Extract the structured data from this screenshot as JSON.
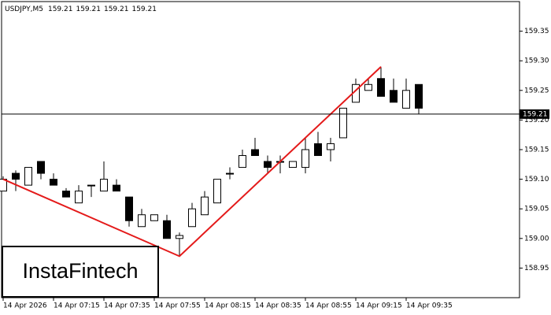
{
  "chart_data": {
    "type": "candlestick",
    "symbol": "USDJPY,M5",
    "quote": [
      159.21,
      159.21,
      159.21,
      159.21
    ],
    "logo": "InstaFintech",
    "categories": [
      "14 Apr 2026",
      null,
      null,
      null,
      "14 Apr 07:15",
      null,
      null,
      null,
      "14 Apr 07:35",
      null,
      null,
      null,
      "14 Apr 07:55",
      null,
      null,
      null,
      "14 Apr 08:15",
      null,
      null,
      null,
      "14 Apr 08:35",
      null,
      null,
      null,
      "14 Apr 08:55",
      null,
      null,
      null,
      "14 Apr 09:15",
      null,
      null,
      null,
      "14 Apr 09:35",
      null
    ],
    "open": [
      159.08,
      159.11,
      159.09,
      159.13,
      159.1,
      159.08,
      159.06,
      159.09,
      159.08,
      159.09,
      159.07,
      159.02,
      159.03,
      159.03,
      159.0,
      159.02,
      159.04,
      159.06,
      159.11,
      159.12,
      159.15,
      159.13,
      159.13,
      159.12,
      159.12,
      159.16,
      159.15,
      159.17,
      159.23,
      159.25,
      159.27,
      159.25,
      159.22,
      159.26
    ],
    "high": [
      159.105,
      159.115,
      159.12,
      159.13,
      159.11,
      159.085,
      159.09,
      159.09,
      159.13,
      159.1,
      159.07,
      159.05,
      159.04,
      159.04,
      159.01,
      159.06,
      159.08,
      159.1,
      159.12,
      159.15,
      159.17,
      159.14,
      159.14,
      159.13,
      159.17,
      159.18,
      159.17,
      159.22,
      159.27,
      159.27,
      159.29,
      159.27,
      159.27,
      159.26
    ],
    "low": [
      159.08,
      159.08,
      159.09,
      159.1,
      159.09,
      159.07,
      159.06,
      159.07,
      159.08,
      159.08,
      159.02,
      159.02,
      159.03,
      159.0,
      158.97,
      159.02,
      159.04,
      159.06,
      159.1,
      159.12,
      159.14,
      159.11,
      159.11,
      159.12,
      159.11,
      159.14,
      159.13,
      159.17,
      159.23,
      159.25,
      159.24,
      159.23,
      159.22,
      159.21
    ],
    "close": [
      159.1,
      159.1,
      159.12,
      159.11,
      159.09,
      159.07,
      159.08,
      159.09,
      159.1,
      159.08,
      159.03,
      159.04,
      159.04,
      159.0,
      159.005,
      159.05,
      159.07,
      159.1,
      159.11,
      159.14,
      159.14,
      159.12,
      159.13,
      159.13,
      159.15,
      159.14,
      159.16,
      159.22,
      159.26,
      159.26,
      159.24,
      159.23,
      159.25,
      159.22
    ],
    "up_color": "#ffffff",
    "down_color": "#000000",
    "pattern": {
      "color": "#e41a1a",
      "at": [
        0,
        14,
        30
      ],
      "values": [
        159.1,
        158.97,
        159.29
      ]
    },
    "last_price": 159.21,
    "ylim": [
      158.9,
      159.4
    ],
    "yticks": [
      {
        "value": 158.95,
        "label": "158.95"
      },
      {
        "value": 159.0,
        "label": "159.00"
      },
      {
        "value": 159.05,
        "label": "159.05"
      },
      {
        "value": 159.1,
        "label": "159.10"
      },
      {
        "value": 159.15,
        "label": "159.15"
      },
      {
        "value": 159.2,
        "label": "159.20"
      },
      {
        "value": 159.25,
        "label": "159.25"
      },
      {
        "value": 159.3,
        "label": "159.30"
      },
      {
        "value": 159.35,
        "label": "159.35"
      }
    ]
  }
}
